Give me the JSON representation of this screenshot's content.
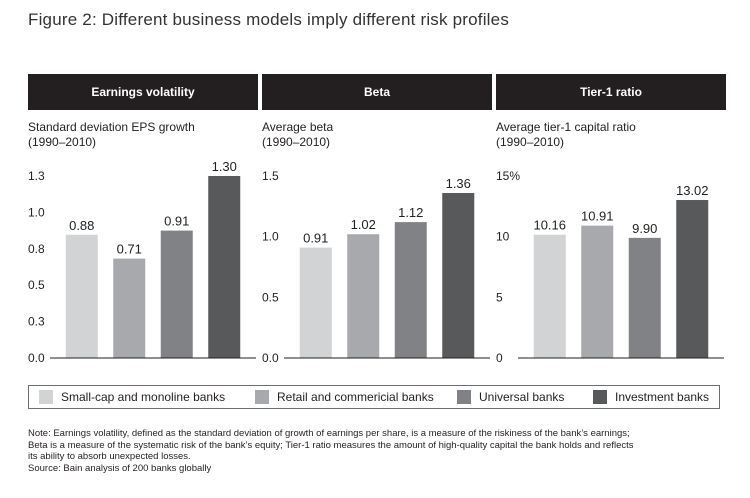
{
  "title": "Figure 2: Different business models imply different risk profiles",
  "colors": {
    "header_bg": "#231f20",
    "small_cap": "#d1d3d4",
    "retail": "#a7a9ac",
    "universal": "#808285",
    "investment": "#58595b"
  },
  "legend": [
    {
      "label": "Small-cap and monoline banks",
      "color": "#d1d3d4"
    },
    {
      "label": "Retail and commericial banks",
      "color": "#a7a9ac"
    },
    {
      "label": "Universal banks",
      "color": "#808285"
    },
    {
      "label": "Investment banks",
      "color": "#58595b"
    }
  ],
  "chart_data": [
    {
      "type": "bar",
      "title": "Earnings volatility",
      "ylabel_line1": "Standard deviation EPS growth",
      "ylabel_line2": "(1990–2010)",
      "categories": [
        "Small-cap and monoline banks",
        "Retail and commericial banks",
        "Universal banks",
        "Investment banks"
      ],
      "values": [
        0.88,
        0.71,
        0.91,
        1.3
      ],
      "value_labels": [
        "0.88",
        "0.71",
        "0.91",
        "1.30"
      ],
      "ylim": [
        0,
        1.3
      ],
      "yticks": [
        0.0,
        0.26,
        0.52,
        0.78,
        1.04,
        1.3
      ],
      "ytick_labels": [
        "0.0",
        "0.3",
        "0.5",
        "0.8",
        "1.0",
        "1.3"
      ]
    },
    {
      "type": "bar",
      "title": "Beta",
      "ylabel_line1": "Average beta",
      "ylabel_line2": "(1990–2010)",
      "categories": [
        "Small-cap and monoline banks",
        "Retail and commericial banks",
        "Universal banks",
        "Investment banks"
      ],
      "values": [
        0.91,
        1.02,
        1.12,
        1.36
      ],
      "value_labels": [
        "0.91",
        "1.02",
        "1.12",
        "1.36"
      ],
      "ylim": [
        0,
        1.5
      ],
      "yticks": [
        0.0,
        0.5,
        1.0,
        1.5
      ],
      "ytick_labels": [
        "0.0",
        "0.5",
        "1.0",
        "1.5"
      ]
    },
    {
      "type": "bar",
      "title": "Tier-1 ratio",
      "ylabel_line1": "Average tier-1 capital ratio",
      "ylabel_line2": "(1990–2010)",
      "categories": [
        "Small-cap and monoline banks",
        "Retail and commericial banks",
        "Universal banks",
        "Investment banks"
      ],
      "values": [
        10.16,
        10.91,
        9.9,
        13.02
      ],
      "value_labels": [
        "10.16",
        "10.91",
        "9.90",
        "13.02"
      ],
      "ylim": [
        0,
        15
      ],
      "yticks": [
        0,
        5,
        10,
        15
      ],
      "ytick_labels": [
        "0",
        "5",
        "10",
        "15%"
      ]
    }
  ],
  "notes": [
    "Note: Earnings volatility, defined as the standard deviation of growth of earnings per share, is a measure of the riskiness of the bank’s earnings;",
    "Beta is a measure of the systematic risk of the bank’s equity; Tier-1 ratio measures the amount of high-quality capital the bank holds and reflects",
    "its ability to absorb unexpected losses.",
    "Source: Bain analysis of 200 banks globally"
  ]
}
